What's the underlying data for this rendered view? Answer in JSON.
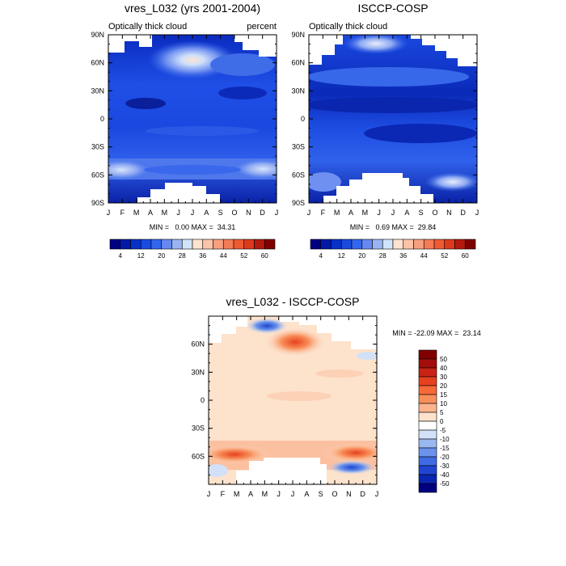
{
  "chart_data": [
    {
      "type": "heatmap",
      "title": "vres_L032 (yrs 2001-2004)",
      "subtitle_left": "Optically thick cloud",
      "subtitle_right": "percent",
      "x_ticks": [
        "J",
        "F",
        "M",
        "A",
        "M",
        "J",
        "J",
        "A",
        "S",
        "O",
        "N",
        "D",
        "J"
      ],
      "y_ticks": [
        "90N",
        "60N",
        "30N",
        "0",
        "30S",
        "60S",
        "90S"
      ],
      "stats": "MIN =   0.00 MAX =  34.31",
      "colorbar_labels": [
        "4",
        "12",
        "20",
        "28",
        "36",
        "44",
        "52",
        "60"
      ],
      "colorbar_colors": [
        "#000080",
        "#0219a8",
        "#0632c8",
        "#1a4be0",
        "#3366ee",
        "#6688f0",
        "#99b3f4",
        "#d2e4fa",
        "#fde3d0",
        "#fbc3a8",
        "#f7a07f",
        "#f37c57",
        "#ef5a32",
        "#dc3a1e",
        "#b41a0e",
        "#800000"
      ]
    },
    {
      "type": "heatmap",
      "title": "ISCCP-COSP",
      "subtitle_left": "Optically thick cloud",
      "x_ticks": [
        "J",
        "F",
        "M",
        "A",
        "M",
        "J",
        "J",
        "A",
        "S",
        "O",
        "N",
        "D",
        "J"
      ],
      "y_ticks": [
        "90N",
        "60N",
        "30N",
        "0",
        "30S",
        "60S",
        "90S"
      ],
      "stats": "MIN =   0.69 MAX =  29.84",
      "colorbar_labels": [
        "4",
        "12",
        "20",
        "28",
        "36",
        "44",
        "52",
        "60"
      ]
    },
    {
      "type": "heatmap",
      "title": "vres_L032 - ISCCP-COSP",
      "x_ticks": [
        "J",
        "F",
        "M",
        "A",
        "M",
        "J",
        "J",
        "A",
        "S",
        "O",
        "N",
        "D",
        "J"
      ],
      "y_ticks": [
        "60N",
        "30N",
        "0",
        "30S",
        "60S"
      ],
      "stats": "MIN = -22.09 MAX =  23.14",
      "colorbar_labels": [
        "50",
        "40",
        "30",
        "20",
        "15",
        "10",
        "5",
        "0",
        "-5",
        "-10",
        "-15",
        "-20",
        "-30",
        "-40",
        "-50"
      ],
      "colorbar_colors": [
        "#800000",
        "#a30e0b",
        "#c82314",
        "#e6411f",
        "#f56a37",
        "#f88f5a",
        "#fbb48c",
        "#fde2cc",
        "#ffffff",
        "#d2e1f7",
        "#99b8f0",
        "#6b93ec",
        "#3f6ae4",
        "#1f45d0",
        "#0a25b0",
        "#000080"
      ]
    }
  ]
}
